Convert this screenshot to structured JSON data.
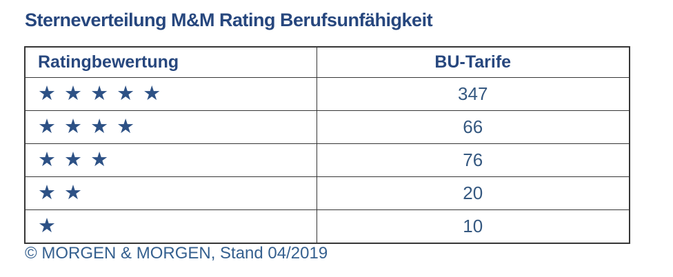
{
  "title": "Sterneverteilung M&M Rating Berufsunfähigkeit",
  "footer": "© MORGEN & MORGEN, Stand 04/2019",
  "colors": {
    "title_text": "#27477e",
    "header_text": "#27477e",
    "stars": "#2d5185",
    "values": "#355880",
    "footer_text": "#35608f",
    "table_border": "#363636",
    "background": "#ffffff"
  },
  "icons": {
    "star_icon": "★"
  },
  "table": {
    "headers": {
      "rating": "Ratingbewertung",
      "tariffs": "BU-Tarife"
    },
    "rows": [
      {
        "stars": 5,
        "stars_text": "★ ★ ★ ★ ★",
        "value": "347"
      },
      {
        "stars": 4,
        "stars_text": "★ ★ ★ ★",
        "value": "66"
      },
      {
        "stars": 3,
        "stars_text": "★ ★ ★",
        "value": "76"
      },
      {
        "stars": 2,
        "stars_text": "★ ★",
        "value": "20"
      },
      {
        "stars": 1,
        "stars_text": "★",
        "value": "10"
      }
    ]
  },
  "chart_data": {
    "type": "table",
    "title": "Sterneverteilung M&M Rating Berufsunfähigkeit",
    "columns": [
      "Ratingbewertung",
      "BU-Tarife"
    ],
    "categories": [
      "5 Sterne",
      "4 Sterne",
      "3 Sterne",
      "2 Sterne",
      "1 Stern"
    ],
    "values": [
      347,
      66,
      76,
      20,
      10
    ],
    "source_note": "© MORGEN & MORGEN, Stand 04/2019"
  }
}
